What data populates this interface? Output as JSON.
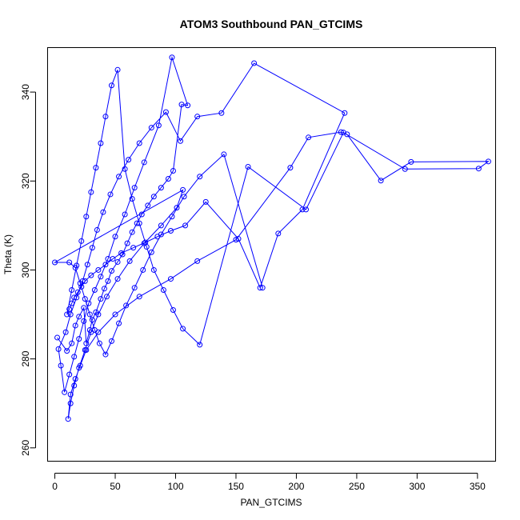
{
  "chart_data": {
    "type": "line",
    "title": "ATOM3 Southbound PAN_GTCIMS",
    "xlabel": "PAN_GTCIMS",
    "ylabel": "Theta (K)",
    "xlim": [
      -6,
      365
    ],
    "ylim": [
      257,
      350
    ],
    "xticks": [
      0,
      50,
      100,
      150,
      200,
      250,
      300,
      350
    ],
    "yticks": [
      260,
      280,
      300,
      320,
      340
    ],
    "xtick_labels": [
      "0",
      "50",
      "100",
      "150",
      "200",
      "250",
      "300",
      "350"
    ],
    "ytick_labels": [
      "260",
      "280",
      "300",
      "320",
      "340"
    ],
    "grid": false,
    "legend": "none",
    "series": [
      {
        "color": "#0000ff",
        "marker": "open-circle",
        "x": [
          2,
          10,
          14,
          17,
          20,
          24,
          26,
          29,
          31,
          34,
          38,
          41,
          44,
          47,
          52,
          56,
          60,
          64,
          68,
          72,
          77,
          82,
          88,
          94,
          98,
          105,
          110,
          97,
          86,
          74,
          66,
          58,
          50,
          44,
          38,
          33,
          28,
          24,
          20,
          16,
          12,
          8,
          5,
          3,
          9,
          13,
          18,
          23,
          27,
          31,
          35,
          40,
          46,
          53,
          61,
          70,
          80,
          92,
          104,
          118,
          138,
          165,
          240,
          205,
          185,
          170,
          152,
          125,
          108,
          96,
          85,
          75,
          65,
          55,
          48,
          42,
          36,
          30,
          25,
          22,
          19,
          16,
          14,
          12,
          10,
          14,
          18,
          22,
          26,
          30,
          34,
          38,
          42,
          47,
          52,
          58,
          64,
          70,
          76,
          82,
          90,
          98,
          106,
          120,
          160,
          208,
          239,
          290,
          351,
          359,
          295,
          270,
          242,
          237,
          210,
          195,
          150,
          118,
          96,
          70,
          50,
          36,
          26,
          21,
          17,
          13,
          11,
          13,
          16,
          20,
          25,
          30,
          36,
          43,
          52,
          62,
          74,
          88,
          101,
          106,
          0,
          12,
          17,
          21,
          25,
          29,
          33,
          37,
          42,
          47,
          53,
          59,
          66,
          73,
          80,
          88,
          97,
          107,
          120,
          140,
          172
        ],
        "y": [
          284.8,
          281.8,
          283.5,
          287.5,
          289.5,
          291.5,
          283.5,
          286.5,
          288.8,
          290.5,
          293.5,
          295.8,
          297.5,
          299.8,
          301.8,
          303.5,
          306.0,
          308.5,
          310.5,
          312.5,
          314.5,
          316.5,
          318.5,
          320.5,
          322.3,
          337.2,
          337.0,
          347.8,
          332.5,
          324.2,
          318.5,
          312.5,
          307.5,
          302.5,
          298.5,
          295.5,
          292.5,
          288.5,
          284.5,
          280.5,
          276.5,
          272.5,
          278.5,
          282.2,
          286.0,
          290.0,
          293.8,
          297.5,
          301.2,
          305.0,
          309.0,
          313.0,
          317.0,
          321.0,
          324.8,
          328.5,
          332.0,
          335.5,
          329.0,
          334.5,
          335.3,
          346.5,
          335.3,
          313.6,
          308.2,
          296.0,
          307.0,
          315.3,
          310.0,
          308.8,
          307.5,
          306.2,
          305.0,
          303.8,
          302.5,
          301.2,
          300.0,
          298.8,
          297.5,
          296.2,
          295.0,
          293.8,
          292.5,
          291.2,
          290.0,
          295.5,
          301.0,
          306.5,
          312.0,
          317.5,
          323.0,
          328.5,
          334.5,
          341.5,
          345.0,
          322.7,
          316.0,
          310.5,
          305.2,
          300.0,
          295.5,
          291.0,
          286.8,
          283.2,
          323.2,
          313.6,
          330.9,
          322.7,
          322.8,
          324.4,
          324.3,
          320.1,
          330.5,
          331.0,
          329.8,
          323.0,
          306.8,
          302.0,
          298.0,
          294.0,
          290.0,
          286.0,
          282.0,
          278.5,
          275.5,
          272.0,
          266.5,
          270.0,
          274.0,
          278.0,
          282.0,
          286.0,
          290.0,
          294.0,
          298.0,
          302.0,
          306.0,
          310.0,
          314.0,
          318.0,
          301.7,
          301.7,
          300.5,
          297.0,
          293.5,
          290.0,
          286.5,
          283.5,
          281.0,
          284.0,
          288.0,
          292.0,
          296.0,
          300.0,
          304.0,
          308.0,
          312.0,
          316.5,
          321.0,
          326.0,
          296.0
        ]
      }
    ]
  }
}
